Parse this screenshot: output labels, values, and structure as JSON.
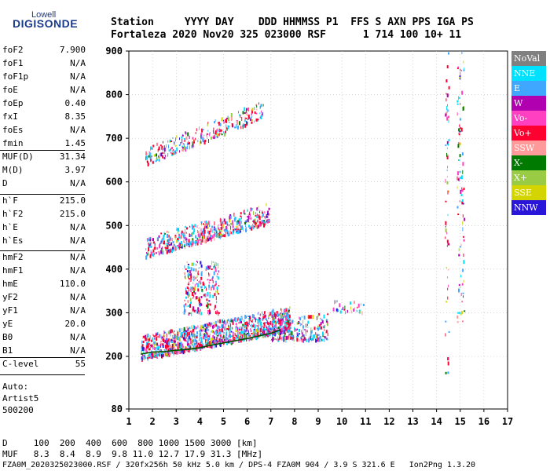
{
  "logo": {
    "top": "Lowell",
    "bottom": "DIGISONDE"
  },
  "header": {
    "line1": "Station     YYYY DAY    DDD HHMMSS P1  FFS S AXN PPS IGA PS",
    "line2": "Fortaleza 2020 Nov20 325 023000 RSF      1 714 100 10+ 11"
  },
  "params": {
    "group1": [
      {
        "name": "foF2",
        "value": "7.900"
      },
      {
        "name": "foF1",
        "value": "N/A"
      },
      {
        "name": "foF1p",
        "value": "N/A"
      },
      {
        "name": "foE",
        "value": "N/A"
      },
      {
        "name": "foEp",
        "value": "0.40"
      },
      {
        "name": "fxI",
        "value": "8.35"
      },
      {
        "name": "foEs",
        "value": "N/A"
      },
      {
        "name": "fmin",
        "value": "1.45"
      }
    ],
    "group2": [
      {
        "name": "MUF(D)",
        "value": "31.34"
      },
      {
        "name": "M(D)",
        "value": "3.97"
      },
      {
        "name": "D",
        "value": "N/A"
      }
    ],
    "group3": [
      {
        "name": "h`F",
        "value": "215.0"
      },
      {
        "name": "h`F2",
        "value": "215.0"
      },
      {
        "name": "h`E",
        "value": "N/A"
      },
      {
        "name": "h`Es",
        "value": "N/A"
      }
    ],
    "group4": [
      {
        "name": "hmF2",
        "value": "N/A"
      },
      {
        "name": "hmF1",
        "value": "N/A"
      },
      {
        "name": "hmE",
        "value": "110.0"
      },
      {
        "name": "yF2",
        "value": "N/A"
      },
      {
        "name": "yF1",
        "value": "N/A"
      },
      {
        "name": "yE",
        "value": "20.0"
      },
      {
        "name": "B0",
        "value": "N/A"
      },
      {
        "name": "B1",
        "value": "N/A"
      }
    ],
    "group5": [
      {
        "name": "C-level",
        "value": "55"
      }
    ]
  },
  "auto": {
    "line1": "Auto:",
    "line2": "Artist5",
    "line3": "500200"
  },
  "legend": [
    {
      "label": "NoVal",
      "color": "#808080"
    },
    {
      "label": "NNE",
      "color": "#00e0ff"
    },
    {
      "label": "E",
      "color": "#3fa7ff"
    },
    {
      "label": "W",
      "color": "#b000b0"
    },
    {
      "label": "Vo-",
      "color": "#ff40c0"
    },
    {
      "label": "Vo+",
      "color": "#ff0030"
    },
    {
      "label": "SSW",
      "color": "#ff9a9a"
    },
    {
      "label": "X-",
      "color": "#007a00"
    },
    {
      "label": "X+",
      "color": "#99cc44"
    },
    {
      "label": "SSE",
      "color": "#d4d400"
    },
    {
      "label": "NNW",
      "color": "#2a16d8"
    }
  ],
  "footer": {
    "row1": "D     100  200  400  600  800 1000 1500 3000 [km]",
    "row2": "MUF   8.3  8.4  8.9  9.8 11.0 12.7 17.9 31.3 [MHz]",
    "row3": "FZA0M_2020325023000.RSF / 320fx256h 50 kHz 5.0 km / DPS-4 FZA0M 904 / 3.9 S 321.6 E   Ion2Png 1.3.20"
  },
  "chart_data": {
    "type": "scatter",
    "xlim": [
      1,
      17
    ],
    "ylim": [
      80,
      900
    ],
    "xticks": [
      1,
      2,
      3,
      4,
      5,
      6,
      7,
      8,
      9,
      10,
      11,
      12,
      13,
      14,
      15,
      16,
      17
    ],
    "yticks": [
      80,
      200,
      300,
      400,
      500,
      600,
      700,
      800,
      900
    ],
    "grid": true,
    "clusters": [
      {
        "desc": "F trace 1st hop",
        "x": [
          1.5,
          7.8
        ],
        "h": [
          195,
          270
        ],
        "slope": 10.6,
        "spread": 55,
        "n": 1200
      },
      {
        "desc": "F trace 1st hop tail",
        "x": [
          7.0,
          9.4
        ],
        "h": [
          240,
          380
        ],
        "slope": 0,
        "spread": 60,
        "n": 260
      },
      {
        "desc": "F trace 2nd hop",
        "x": [
          1.7,
          6.9
        ],
        "h": [
          430,
          490
        ],
        "slope": 15,
        "spread": 45,
        "n": 520
      },
      {
        "desc": "F trace 3rd hop",
        "x": [
          1.7,
          6.7
        ],
        "h": [
          640,
          690
        ],
        "slope": 22,
        "spread": 40,
        "n": 280
      },
      {
        "desc": "Vertical spread 3.3-4.8",
        "x": [
          3.3,
          4.8
        ],
        "h": [
          300,
          420
        ],
        "slope": 0,
        "spread": 0,
        "n": 220
      },
      {
        "desc": "Scattered echoes near 10 MHz",
        "x": [
          9.6,
          10.9
        ],
        "h": [
          300,
          330
        ],
        "slope": 0,
        "spread": 0,
        "n": 30
      },
      {
        "desc": "Vertical streak 14.4 MHz",
        "x": [
          14.35,
          14.5
        ],
        "h": [
          160,
          900
        ],
        "slope": 0,
        "spread": 0,
        "n": 60
      },
      {
        "desc": "Vertical streak 15.0 MHz",
        "x": [
          14.85,
          15.15
        ],
        "h": [
          280,
          900
        ],
        "slope": 0,
        "spread": 0,
        "n": 90
      }
    ],
    "trace": {
      "name": "X-",
      "x": [
        1.5,
        2.0,
        2.5,
        3.0,
        3.5,
        4.0,
        4.5,
        5.0,
        5.5,
        6.0,
        6.5,
        7.0,
        7.4
      ],
      "y": [
        205,
        210,
        211,
        214,
        216,
        220,
        226,
        231,
        236,
        241,
        247,
        253,
        261
      ]
    }
  }
}
